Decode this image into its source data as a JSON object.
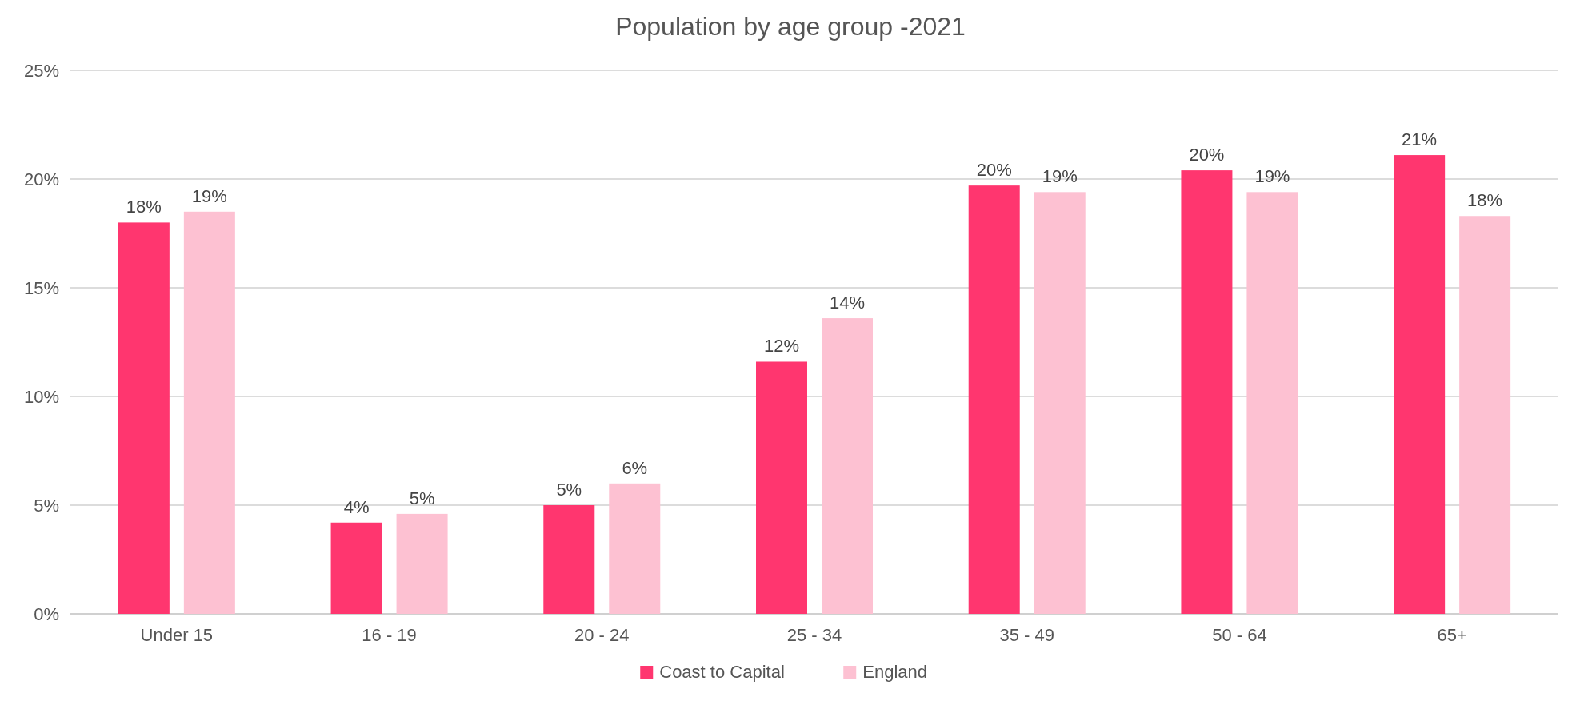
{
  "chart_data": {
    "type": "bar",
    "title": "Population by age group -2021",
    "categories": [
      "Under 15",
      "16 - 19",
      "20 - 24",
      "25 - 34",
      "35 - 49",
      "50 - 64",
      "65+"
    ],
    "series": [
      {
        "name": "Coast to Capital",
        "color": "#ff366f",
        "values": [
          18.0,
          4.2,
          5.0,
          11.6,
          19.7,
          20.4,
          21.1
        ],
        "value_labels": [
          "18%",
          "4%",
          "5%",
          "12%",
          "20%",
          "20%",
          "21%"
        ]
      },
      {
        "name": "England",
        "color": "#fdc1d2",
        "values": [
          18.5,
          4.6,
          6.0,
          13.6,
          19.4,
          19.4,
          18.3
        ],
        "value_labels": [
          "19%",
          "5%",
          "6%",
          "14%",
          "19%",
          "19%",
          "18%"
        ]
      }
    ],
    "ylim": [
      0,
      25
    ],
    "yticks": [
      {
        "value": 0,
        "label": "0%"
      },
      {
        "value": 5,
        "label": "5%"
      },
      {
        "value": 10,
        "label": "10%"
      },
      {
        "value": 15,
        "label": "15%"
      },
      {
        "value": 20,
        "label": "20%"
      },
      {
        "value": 25,
        "label": "25%"
      }
    ],
    "grid": "y",
    "legend": "bottom"
  }
}
